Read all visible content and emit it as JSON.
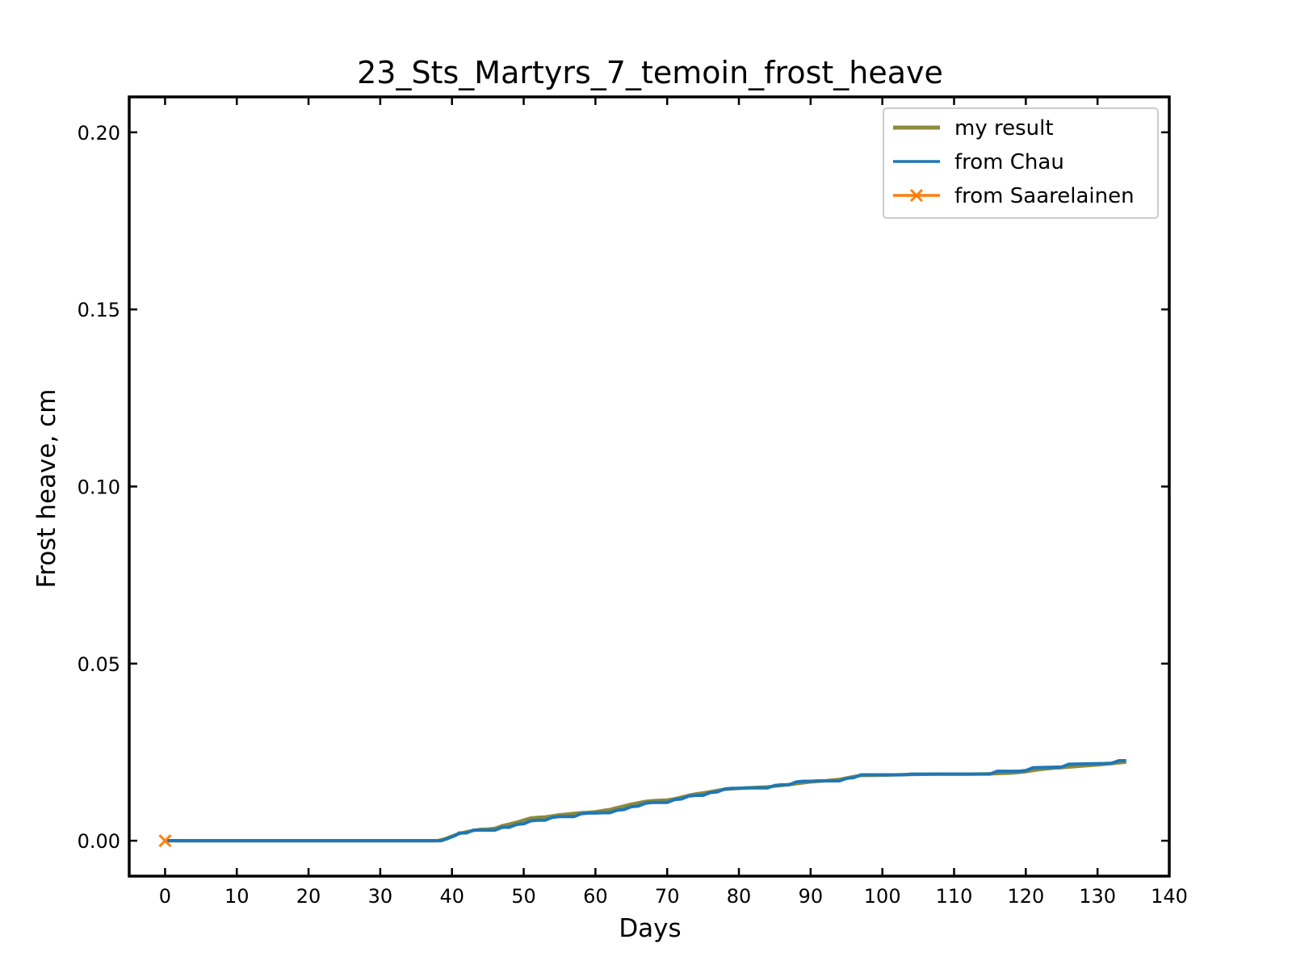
{
  "chart_data": {
    "type": "line",
    "title": "23_Sts_Martyrs_7_temoin_frost_heave",
    "xlabel": "Days",
    "ylabel": "Frost heave, cm",
    "xlim": [
      -5,
      140
    ],
    "ylim": [
      -0.01,
      0.21
    ],
    "xticks": [
      0,
      10,
      20,
      30,
      40,
      50,
      60,
      70,
      80,
      90,
      100,
      110,
      120,
      130,
      140
    ],
    "xtick_labels": [
      "0",
      "10",
      "20",
      "30",
      "40",
      "50",
      "60",
      "70",
      "80",
      "90",
      "100",
      "110",
      "120",
      "130",
      "140"
    ],
    "yticks": [
      0.0,
      0.05,
      0.1,
      0.15,
      0.2
    ],
    "ytick_labels": [
      "0.00",
      "0.05",
      "0.10",
      "0.15",
      "0.20"
    ],
    "grid": false,
    "legend_position": "top-right",
    "series": [
      {
        "name": "my result",
        "color": "#8c8a3c",
        "marker": "none",
        "x": [
          0,
          38,
          39,
          40,
          41,
          42,
          43,
          44,
          45,
          46,
          47,
          48,
          49,
          50,
          51,
          52,
          53,
          54,
          55,
          56,
          57,
          58,
          59,
          60,
          61,
          62,
          63,
          64,
          65,
          66,
          67,
          68,
          69,
          70,
          71,
          72,
          73,
          74,
          75,
          76,
          77,
          78,
          80,
          82,
          84,
          86,
          88,
          90,
          92,
          94,
          96,
          97,
          100,
          104,
          108,
          112,
          115,
          118,
          120,
          122,
          124,
          126,
          128,
          130,
          132,
          134
        ],
        "y": [
          0.0,
          0.0,
          0.0005,
          0.0013,
          0.002,
          0.0025,
          0.0029,
          0.0032,
          0.0033,
          0.0035,
          0.0042,
          0.0047,
          0.0052,
          0.0058,
          0.0064,
          0.0066,
          0.0067,
          0.007,
          0.0073,
          0.0075,
          0.0077,
          0.0079,
          0.008,
          0.0082,
          0.0085,
          0.0088,
          0.0093,
          0.0098,
          0.0103,
          0.0107,
          0.0111,
          0.0113,
          0.0114,
          0.0115,
          0.0118,
          0.0123,
          0.0128,
          0.0132,
          0.0135,
          0.0138,
          0.0142,
          0.0145,
          0.0148,
          0.015,
          0.0152,
          0.0156,
          0.0161,
          0.0166,
          0.0169,
          0.0173,
          0.0181,
          0.0184,
          0.0185,
          0.0187,
          0.0188,
          0.0188,
          0.0189,
          0.0191,
          0.0195,
          0.0201,
          0.0205,
          0.0208,
          0.0211,
          0.0214,
          0.0218,
          0.0222
        ]
      },
      {
        "name": "from Chau",
        "color": "#1f77b4",
        "marker": "none",
        "x": [
          0,
          38.5,
          39.5,
          40.5,
          41,
          42,
          43,
          44,
          45,
          46,
          47,
          48,
          49,
          50,
          51,
          52,
          53,
          54,
          55,
          56,
          57,
          58,
          59,
          60,
          61,
          62,
          63,
          64,
          65,
          66,
          67,
          68,
          69,
          70,
          71,
          72,
          73,
          74,
          75,
          76,
          77,
          78,
          79,
          80,
          81,
          82,
          83,
          84,
          85,
          86,
          87,
          88,
          89,
          90,
          91,
          92,
          93,
          94,
          95,
          96,
          97,
          103,
          104,
          115,
          116,
          119,
          120,
          121,
          125,
          126,
          131,
          132,
          133,
          134
        ],
        "y": [
          0.0,
          0.0,
          0.0007,
          0.0015,
          0.0022,
          0.0022,
          0.003,
          0.003,
          0.003,
          0.003,
          0.0038,
          0.0038,
          0.0046,
          0.0048,
          0.0056,
          0.0058,
          0.0058,
          0.0066,
          0.0068,
          0.0068,
          0.0068,
          0.0076,
          0.0078,
          0.0078,
          0.0079,
          0.0079,
          0.0086,
          0.0088,
          0.0096,
          0.0098,
          0.0106,
          0.0108,
          0.0108,
          0.0108,
          0.0116,
          0.0118,
          0.0126,
          0.0128,
          0.0128,
          0.0136,
          0.0138,
          0.0146,
          0.0148,
          0.0148,
          0.0149,
          0.0149,
          0.0149,
          0.0149,
          0.0156,
          0.0158,
          0.0158,
          0.0166,
          0.0168,
          0.0168,
          0.0169,
          0.0169,
          0.0169,
          0.0169,
          0.0176,
          0.0178,
          0.0186,
          0.0186,
          0.0188,
          0.0188,
          0.0196,
          0.0196,
          0.0198,
          0.0206,
          0.0208,
          0.0216,
          0.0218,
          0.0219,
          0.0226,
          0.0226
        ]
      },
      {
        "name": "from Saarelainen",
        "color": "#ff7f0e",
        "marker": "x",
        "x": [
          0
        ],
        "y": [
          0.0
        ]
      }
    ]
  }
}
